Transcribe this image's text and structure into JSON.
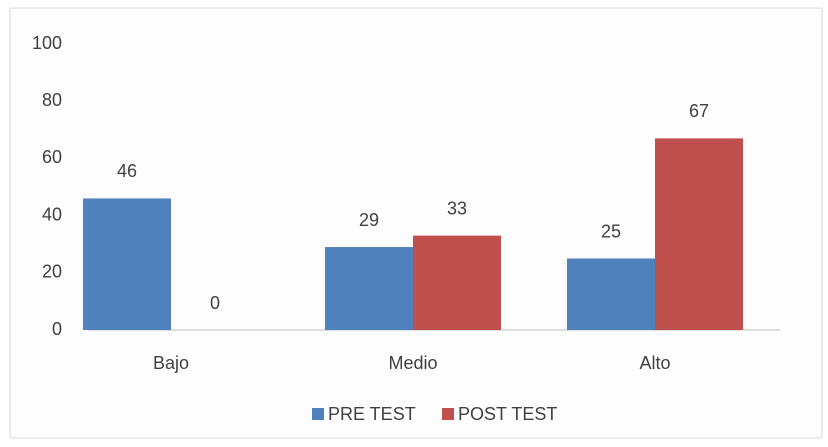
{
  "chart_data": {
    "type": "bar",
    "categories": [
      "Bajo",
      "Medio",
      "Alto"
    ],
    "series": [
      {
        "name": "PRE TEST",
        "color": "#4f81bd",
        "values": [
          46,
          29,
          25
        ]
      },
      {
        "name": "POST TEST",
        "color": "#c0504d",
        "values": [
          0,
          33,
          67
        ]
      }
    ],
    "ylim": [
      0,
      100
    ],
    "yticks": [
      0,
      20,
      40,
      60,
      80,
      100
    ],
    "grid": false,
    "legend": "bottom"
  }
}
